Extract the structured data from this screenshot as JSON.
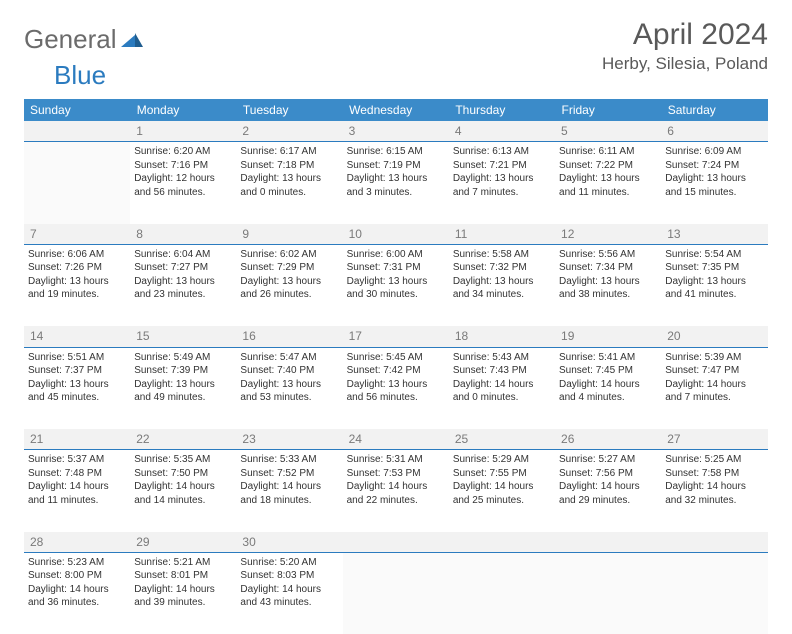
{
  "brand": {
    "part1": "General",
    "part2": "Blue"
  },
  "title": "April 2024",
  "location": "Herby, Silesia, Poland",
  "colors": {
    "header_bg": "#3b8bc9",
    "header_text": "#ffffff",
    "daynum_bg": "#f2f2f2",
    "daynum_text": "#7a7a7a",
    "daynum_border": "#2b7bbf",
    "brand_gray": "#6b6b6b",
    "brand_blue": "#2b7bbf",
    "body_text": "#333333"
  },
  "day_headers": [
    "Sunday",
    "Monday",
    "Tuesday",
    "Wednesday",
    "Thursday",
    "Friday",
    "Saturday"
  ],
  "weeks": [
    {
      "nums": [
        "",
        "1",
        "2",
        "3",
        "4",
        "5",
        "6"
      ],
      "cells": [
        null,
        {
          "sunrise": "Sunrise: 6:20 AM",
          "sunset": "Sunset: 7:16 PM",
          "d1": "Daylight: 12 hours",
          "d2": "and 56 minutes."
        },
        {
          "sunrise": "Sunrise: 6:17 AM",
          "sunset": "Sunset: 7:18 PM",
          "d1": "Daylight: 13 hours",
          "d2": "and 0 minutes."
        },
        {
          "sunrise": "Sunrise: 6:15 AM",
          "sunset": "Sunset: 7:19 PM",
          "d1": "Daylight: 13 hours",
          "d2": "and 3 minutes."
        },
        {
          "sunrise": "Sunrise: 6:13 AM",
          "sunset": "Sunset: 7:21 PM",
          "d1": "Daylight: 13 hours",
          "d2": "and 7 minutes."
        },
        {
          "sunrise": "Sunrise: 6:11 AM",
          "sunset": "Sunset: 7:22 PM",
          "d1": "Daylight: 13 hours",
          "d2": "and 11 minutes."
        },
        {
          "sunrise": "Sunrise: 6:09 AM",
          "sunset": "Sunset: 7:24 PM",
          "d1": "Daylight: 13 hours",
          "d2": "and 15 minutes."
        }
      ]
    },
    {
      "nums": [
        "7",
        "8",
        "9",
        "10",
        "11",
        "12",
        "13"
      ],
      "cells": [
        {
          "sunrise": "Sunrise: 6:06 AM",
          "sunset": "Sunset: 7:26 PM",
          "d1": "Daylight: 13 hours",
          "d2": "and 19 minutes."
        },
        {
          "sunrise": "Sunrise: 6:04 AM",
          "sunset": "Sunset: 7:27 PM",
          "d1": "Daylight: 13 hours",
          "d2": "and 23 minutes."
        },
        {
          "sunrise": "Sunrise: 6:02 AM",
          "sunset": "Sunset: 7:29 PM",
          "d1": "Daylight: 13 hours",
          "d2": "and 26 minutes."
        },
        {
          "sunrise": "Sunrise: 6:00 AM",
          "sunset": "Sunset: 7:31 PM",
          "d1": "Daylight: 13 hours",
          "d2": "and 30 minutes."
        },
        {
          "sunrise": "Sunrise: 5:58 AM",
          "sunset": "Sunset: 7:32 PM",
          "d1": "Daylight: 13 hours",
          "d2": "and 34 minutes."
        },
        {
          "sunrise": "Sunrise: 5:56 AM",
          "sunset": "Sunset: 7:34 PM",
          "d1": "Daylight: 13 hours",
          "d2": "and 38 minutes."
        },
        {
          "sunrise": "Sunrise: 5:54 AM",
          "sunset": "Sunset: 7:35 PM",
          "d1": "Daylight: 13 hours",
          "d2": "and 41 minutes."
        }
      ]
    },
    {
      "nums": [
        "14",
        "15",
        "16",
        "17",
        "18",
        "19",
        "20"
      ],
      "cells": [
        {
          "sunrise": "Sunrise: 5:51 AM",
          "sunset": "Sunset: 7:37 PM",
          "d1": "Daylight: 13 hours",
          "d2": "and 45 minutes."
        },
        {
          "sunrise": "Sunrise: 5:49 AM",
          "sunset": "Sunset: 7:39 PM",
          "d1": "Daylight: 13 hours",
          "d2": "and 49 minutes."
        },
        {
          "sunrise": "Sunrise: 5:47 AM",
          "sunset": "Sunset: 7:40 PM",
          "d1": "Daylight: 13 hours",
          "d2": "and 53 minutes."
        },
        {
          "sunrise": "Sunrise: 5:45 AM",
          "sunset": "Sunset: 7:42 PM",
          "d1": "Daylight: 13 hours",
          "d2": "and 56 minutes."
        },
        {
          "sunrise": "Sunrise: 5:43 AM",
          "sunset": "Sunset: 7:43 PM",
          "d1": "Daylight: 14 hours",
          "d2": "and 0 minutes."
        },
        {
          "sunrise": "Sunrise: 5:41 AM",
          "sunset": "Sunset: 7:45 PM",
          "d1": "Daylight: 14 hours",
          "d2": "and 4 minutes."
        },
        {
          "sunrise": "Sunrise: 5:39 AM",
          "sunset": "Sunset: 7:47 PM",
          "d1": "Daylight: 14 hours",
          "d2": "and 7 minutes."
        }
      ]
    },
    {
      "nums": [
        "21",
        "22",
        "23",
        "24",
        "25",
        "26",
        "27"
      ],
      "cells": [
        {
          "sunrise": "Sunrise: 5:37 AM",
          "sunset": "Sunset: 7:48 PM",
          "d1": "Daylight: 14 hours",
          "d2": "and 11 minutes."
        },
        {
          "sunrise": "Sunrise: 5:35 AM",
          "sunset": "Sunset: 7:50 PM",
          "d1": "Daylight: 14 hours",
          "d2": "and 14 minutes."
        },
        {
          "sunrise": "Sunrise: 5:33 AM",
          "sunset": "Sunset: 7:52 PM",
          "d1": "Daylight: 14 hours",
          "d2": "and 18 minutes."
        },
        {
          "sunrise": "Sunrise: 5:31 AM",
          "sunset": "Sunset: 7:53 PM",
          "d1": "Daylight: 14 hours",
          "d2": "and 22 minutes."
        },
        {
          "sunrise": "Sunrise: 5:29 AM",
          "sunset": "Sunset: 7:55 PM",
          "d1": "Daylight: 14 hours",
          "d2": "and 25 minutes."
        },
        {
          "sunrise": "Sunrise: 5:27 AM",
          "sunset": "Sunset: 7:56 PM",
          "d1": "Daylight: 14 hours",
          "d2": "and 29 minutes."
        },
        {
          "sunrise": "Sunrise: 5:25 AM",
          "sunset": "Sunset: 7:58 PM",
          "d1": "Daylight: 14 hours",
          "d2": "and 32 minutes."
        }
      ]
    },
    {
      "nums": [
        "28",
        "29",
        "30",
        "",
        "",
        "",
        ""
      ],
      "cells": [
        {
          "sunrise": "Sunrise: 5:23 AM",
          "sunset": "Sunset: 8:00 PM",
          "d1": "Daylight: 14 hours",
          "d2": "and 36 minutes."
        },
        {
          "sunrise": "Sunrise: 5:21 AM",
          "sunset": "Sunset: 8:01 PM",
          "d1": "Daylight: 14 hours",
          "d2": "and 39 minutes."
        },
        {
          "sunrise": "Sunrise: 5:20 AM",
          "sunset": "Sunset: 8:03 PM",
          "d1": "Daylight: 14 hours",
          "d2": "and 43 minutes."
        },
        null,
        null,
        null,
        null
      ]
    }
  ]
}
